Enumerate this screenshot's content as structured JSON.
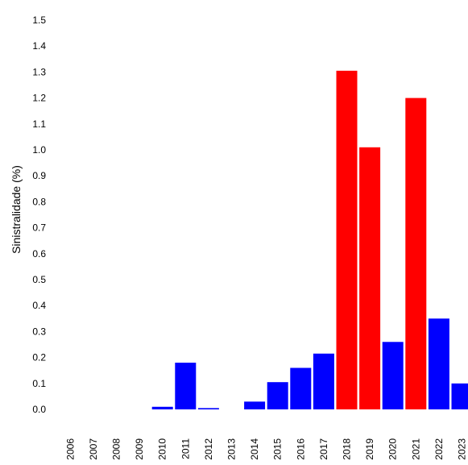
{
  "chart_data": {
    "type": "bar",
    "title": "",
    "xlabel": "",
    "ylabel": "Sinistralidade (%)",
    "ylim": [
      0,
      1.5
    ],
    "yticks": [
      "0.0",
      "0.1",
      "0.2",
      "0.3",
      "0.4",
      "0.5",
      "0.6",
      "0.7",
      "0.8",
      "0.9",
      "1.0",
      "1.1",
      "1.2",
      "1.3",
      "1.4",
      "1.5"
    ],
    "categories": [
      "2006",
      "2007",
      "2008",
      "2009",
      "2010",
      "2011",
      "2012",
      "2013",
      "2014",
      "2015",
      "2016",
      "2017",
      "2018",
      "2019",
      "2020",
      "2021",
      "2022",
      "2023"
    ],
    "values": [
      0,
      0,
      0,
      0,
      0.01,
      0.18,
      0.005,
      0,
      0.03,
      0.105,
      0.16,
      0.215,
      1.305,
      1.01,
      0.26,
      1.2,
      0.35,
      0.1
    ],
    "colors": [
      "#0000ff",
      "#0000ff",
      "#0000ff",
      "#0000ff",
      "#0000ff",
      "#0000ff",
      "#0000ff",
      "#0000ff",
      "#0000ff",
      "#0000ff",
      "#0000ff",
      "#0000ff",
      "#ff0000",
      "#ff0000",
      "#0000ff",
      "#ff0000",
      "#0000ff",
      "#0000ff"
    ],
    "grid": false,
    "legend": "none"
  }
}
